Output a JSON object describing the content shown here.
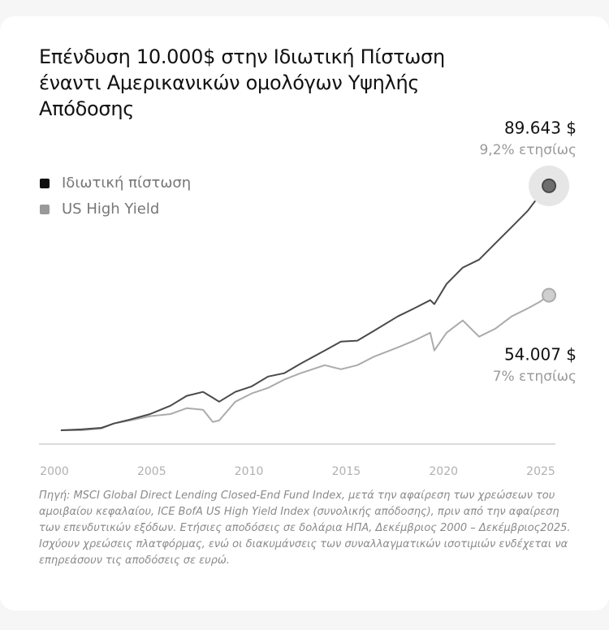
{
  "chart_data": {
    "type": "line",
    "title": "Επένδυση 10.000$ στην Ιδιωτική Πίστωση έναντι Αμερικανικών ομολόγων Υψηλής Απόδοσης",
    "x": [
      2000.33,
      2001.38,
      2002.42,
      2003.05,
      2003.88,
      2004.92,
      2005.97,
      2006.8,
      2007.64,
      2008.14,
      2008.47,
      2009.3,
      2010.14,
      2010.98,
      2011.81,
      2012.65,
      2013.9,
      2014.73,
      2015.57,
      2016.4,
      2017.65,
      2018.49,
      2019.32,
      2019.53,
      2020.16,
      2020.99,
      2021.83,
      2022.66,
      2023.5,
      2024.33,
      2024.96,
      2025.42
    ],
    "series": [
      {
        "name": "Ιδιωτική πίστωση",
        "color": "#4a4a4a",
        "legend_color": "#111111",
        "end_label": "89.643 $",
        "annual_label": "9,2% ετησίως",
        "values": [
          10000,
          10300,
          10800,
          12200,
          13500,
          15300,
          18000,
          21200,
          22500,
          20600,
          19300,
          22500,
          24300,
          27500,
          28600,
          31700,
          36000,
          38900,
          39200,
          42300,
          47100,
          49700,
          52400,
          51100,
          57700,
          63000,
          65600,
          70900,
          76200,
          81500,
          86800,
          89643
        ]
      },
      {
        "name": "US High Yield",
        "color": "#ababab",
        "legend_color": "#999999",
        "end_label": "54.007 $",
        "annual_label": "7% ετησίως",
        "values": [
          10000,
          10000,
          10600,
          12200,
          13200,
          14600,
          15300,
          17200,
          16700,
          12700,
          13200,
          19300,
          22000,
          23800,
          26500,
          28600,
          31200,
          29900,
          31200,
          33900,
          37000,
          39200,
          41800,
          36000,
          41800,
          45800,
          40500,
          43100,
          47100,
          49700,
          51900,
          54007
        ]
      }
    ],
    "xlim": [
      2000,
      2025
    ],
    "xticks": [
      2000,
      2005,
      2010,
      2015,
      2020,
      2025
    ],
    "ylim": [
      5500,
      92000
    ],
    "legend": "top-left",
    "footnote": "Πηγή: MSCI Global Direct Lending Closed-End Fund Index, μετά την αφαίρεση των χρεώσεων του αμοιβαίου κεφαλαίου, ICE BofA US High Yield Index (συνολικής απόδοσης), πριν από την αφαίρεση των επενδυτικών εξόδων. Ετήσιες αποδόσεις σε δολάρια ΗΠΑ, Δεκέμβριος 2000 – Δεκέμβριος2025. Ισχύουν χρεώσεις πλατφόρμας, ενώ οι διακυμάνσεις των συναλλαγματικών ισοτιμιών ενδέχεται να επηρεάσουν τις αποδόσεις σε ευρώ."
  }
}
